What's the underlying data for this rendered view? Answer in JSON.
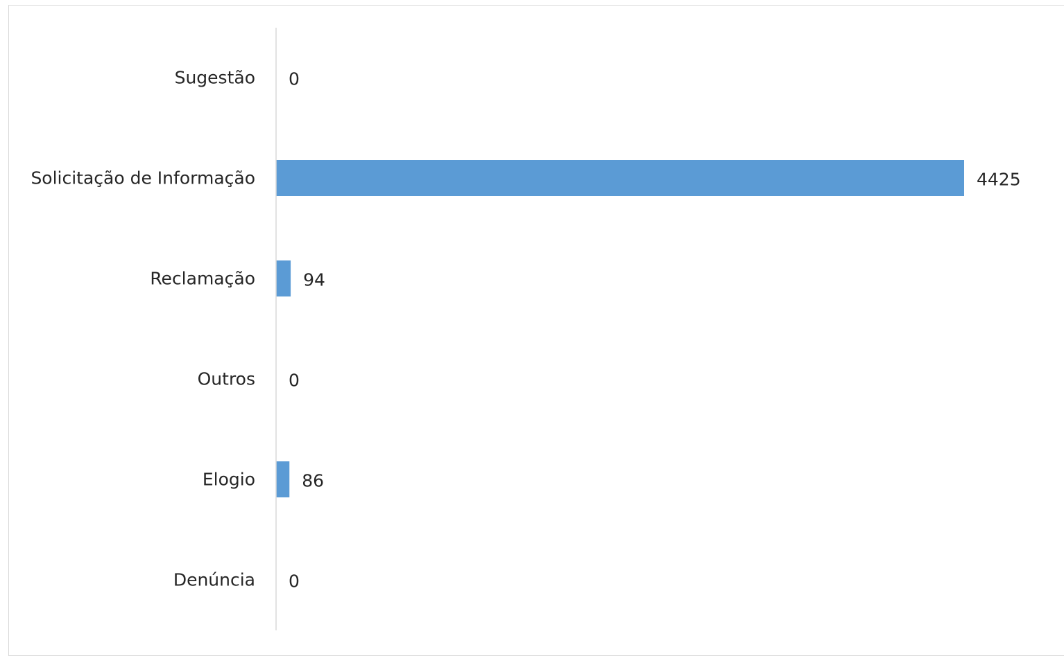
{
  "chart_data": {
    "type": "bar",
    "orientation": "horizontal",
    "categories": [
      "Sugestão",
      "Solicitação de Informação",
      "Reclamação",
      "Outros",
      "Elogio",
      "Denúncia"
    ],
    "values": [
      0,
      4425,
      94,
      0,
      86,
      0
    ],
    "data_labels": [
      "0",
      "4425",
      "94",
      "0",
      "86",
      "0"
    ],
    "title": "",
    "xlabel": "",
    "ylabel": "",
    "xlim": [
      0,
      4425
    ],
    "grid": false,
    "legend": "none",
    "bar_color": "#5b9bd5",
    "axis_color": "#d9d9d9"
  }
}
